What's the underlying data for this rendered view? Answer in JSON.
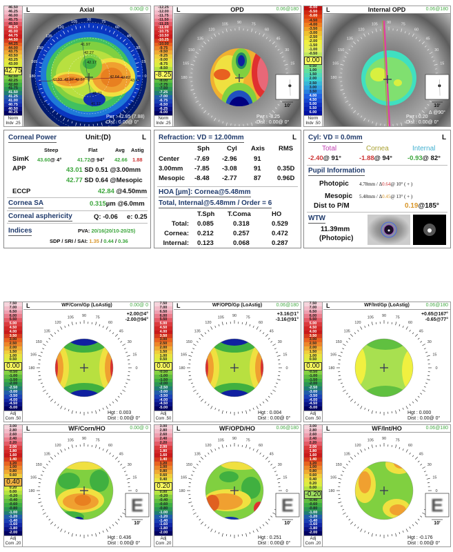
{
  "scales": {
    "axial": [
      "46.50",
      "46.25",
      "46.00",
      "45.75",
      "45.50",
      "45.25",
      "45.00",
      "44.75",
      "44.50",
      "44.25",
      "44.00",
      "43.75",
      "43.50",
      "43.25",
      "43.00",
      "42.75",
      "42.50",
      "42.25",
      "42.00",
      "41.75",
      "41.50",
      "41.25",
      "41.00",
      "40.75",
      "40.50",
      "40.25"
    ],
    "opd": [
      "-12.25",
      "-12.00",
      "-11.75",
      "-11.50",
      "-11.25",
      "-11.00",
      "-10.75",
      "-10.50",
      "-10.25",
      "-10.00",
      "-9.75",
      "-9.50",
      "-9.25",
      "-9.00",
      "-8.75",
      "-8.50",
      "-8.25",
      "-8.00",
      "-7.75",
      "-7.50",
      "-7.25",
      "-7.00",
      "-6.75",
      "-6.50",
      "-6.25",
      "-6.00"
    ],
    "internal": [
      "-6.00",
      "-5.50",
      "-5.00",
      "-4.50",
      "-4.00",
      "-3.50",
      "-3.00",
      "-2.50",
      "-2.00",
      "-1.50",
      "-1.00",
      "-0.50",
      "0.00",
      "0.50",
      "1.00",
      "1.50",
      "2.00",
      "2.50",
      "3.00",
      "3.50",
      "4.00",
      "4.50",
      "5.00",
      "5.50",
      "6.00"
    ],
    "gp": [
      "7.50",
      "7.00",
      "6.50",
      "6.00",
      "5.50",
      "5.00",
      "4.50",
      "4.00",
      "3.50",
      "3.00",
      "2.50",
      "2.00",
      "1.50",
      "1.00",
      "0.50",
      "0.00",
      "-0.50",
      "-1.00",
      "-1.50",
      "-2.00",
      "-2.50",
      "-3.00",
      "-3.50",
      "-4.00",
      "-4.50",
      "-5.00"
    ],
    "ho": [
      "3.00",
      "2.80",
      "2.60",
      "2.40",
      "2.20",
      "2.00",
      "1.80",
      "1.60",
      "1.40",
      "1.20",
      "1.00",
      "0.80",
      "0.60",
      "0.40",
      "0.20",
      "0.00",
      "-0.20",
      "-0.40",
      "-0.60",
      "-0.80",
      "-1.00",
      "-1.20",
      "-1.40",
      "-1.60",
      "-1.80",
      "-2.00"
    ]
  },
  "ramps": {
    "standard": [
      "#f6d4dc",
      "#f0a8b8",
      "#e86878",
      "#d83030",
      "#c81818",
      "#e86020",
      "#f0a030",
      "#f0e040",
      "#d8f040",
      "#80d040",
      "#40b040",
      "#208860",
      "#2050c0",
      "#1020a0",
      "#000060"
    ],
    "internal": [
      "#c01010",
      "#e04010",
      "#f08020",
      "#f0c030",
      "#f0f040",
      "#e0f060",
      "#a0e060",
      "#60e0a0",
      "#40d0d0",
      "#30a0e0",
      "#2060e0",
      "#1030c0",
      "#0010a0"
    ]
  },
  "axis_degrees": [
    "0",
    "15",
    "30",
    "45",
    "60",
    "75",
    "90",
    "105",
    "120",
    "135",
    "150",
    "165",
    "180"
  ],
  "maps": [
    {
      "side": "L",
      "title": "Axial",
      "right": "0.00@  0",
      "scale": "axial",
      "ramp": "standard",
      "highlight": "42.75",
      "foot1": "Norm",
      "foot2": "Indv .25",
      "info1": "Pwr : 42.85 (7.88)",
      "info2": "Dist : 0.00@  0°",
      "readings": [
        "41.97",
        "42.27",
        "42.17",
        "42.93",
        "43.37",
        "42.57",
        "42.64",
        "42.82",
        "43.49",
        "41.71",
        "41.12"
      ]
    },
    {
      "side": "L",
      "title": "OPD",
      "right": "0.06@180",
      "scale": "opd",
      "ramp": "standard",
      "highlight": "-8.25",
      "foot1": "Norm",
      "foot2": "Indv .25",
      "info1": "Pwr : -8.25",
      "info2": "Dist : 0.00@  0°",
      "inset_label": "10'"
    },
    {
      "side": "L",
      "title": "Internal OPD",
      "right": "0.06@180",
      "scale": "internal",
      "ramp": "internal",
      "highlight": "0.00",
      "foot1": "Norm",
      "foot2": "Indv .50",
      "info1": "Pwr : 0.20",
      "info2": "Dist : 0.00@  0°",
      "inset_label": "10'",
      "axis_note": "Δ @90°"
    },
    {
      "side": "L",
      "title": "WF/Corn/Gp (LoAstig)",
      "right": "0.00@  0",
      "scale": "gp",
      "ramp": "standard",
      "highlight": "0.00",
      "foot1": "Adj",
      "foot2": "Com .50",
      "astig1": "+2.00@4°",
      "astig2": "-2.00@94°",
      "info1": "Hgt : 0.003",
      "info2": "Dist : 0.00@  0°"
    },
    {
      "side": "L",
      "title": "WF/OPD/Gp (LoAstig)",
      "right": "0.06@180",
      "scale": "gp",
      "ramp": "standard",
      "highlight": "0.00",
      "foot1": "Adj",
      "foot2": "Com .50",
      "astig1": "+3.16@1°",
      "astig2": "-3.16@91°",
      "info1": "Hgt : 0.004",
      "info2": "Dist : 0.00@  0°"
    },
    {
      "side": "L",
      "title": "WF/Int/Gp (LoAstig)",
      "right": "0.06@180",
      "scale": "gp",
      "ramp": "standard",
      "highlight": "0.00",
      "foot1": "Adj",
      "foot2": "Com .50",
      "astig1": "+0.65@167°",
      "astig2": "-0.65@77°",
      "info1": "Hgt : 0.000",
      "info2": "Dist : 0.00@  0°"
    },
    {
      "side": "L",
      "title": "WF/Corn/HO",
      "right": "0.00@  0",
      "scale": "ho",
      "ramp": "standard",
      "highlight": "0.40",
      "foot1": "Adj",
      "foot2": "Com .20",
      "info1": "Hgt : 0.436",
      "info2": "Dist : 0.00@  0°",
      "inset_label": "10'",
      "inset_letter": "E"
    },
    {
      "side": "L",
      "title": "WF/OPD/HO",
      "right": "0.06@180",
      "scale": "ho",
      "ramp": "standard",
      "highlight": "0.20",
      "foot1": "Adj",
      "foot2": "Com .20",
      "info1": "Hgt : 0.251",
      "info2": "Dist : 0.00@  0°",
      "inset_label": "10'",
      "inset_letter": "E"
    },
    {
      "side": "L",
      "title": "WF/Int/HO",
      "right": "0.06@180",
      "scale": "ho",
      "ramp": "standard",
      "highlight": "-0.20",
      "foot1": "Adj",
      "foot2": "Com .20",
      "info1": "Hgt : -0.176",
      "info2": "Dist : 0.00@  0°",
      "inset_label": "10'",
      "inset_letter": "E"
    }
  ],
  "corneal_power": {
    "title": "Corneal Power",
    "unit": "Unit:(D)",
    "side": "L",
    "col_steep": "Steep",
    "col_flat": "Flat",
    "col_avg": "Avg",
    "col_astig": "Astig",
    "simk_label": "SimK",
    "simk_steep": "43.60",
    "simk_steep_axis": "@  4°",
    "simk_flat": "41.72",
    "simk_flat_axis": "@ 94°",
    "simk_avg": "42.66",
    "simk_astig": "1.88",
    "app_label": "APP",
    "app1_val": "43.01",
    "app1_rest": "SD 0.51 @3.00mm",
    "app2_val": "42.77",
    "app2_rest": "SD 0.64 @Mesopic",
    "eccp_label": "ECCP",
    "eccp_val": "42.84",
    "eccp_rest": "@4.50mm",
    "sa_title": "Cornea SA",
    "sa_val": "0.315",
    "sa_rest": "µm @6.0mm",
    "asph_title": "Corneal asphericity",
    "asph_q": "Q: -0.06",
    "asph_e": "e: 0.25",
    "indices_title": "Indices",
    "pva_label": "PVA: ",
    "pva_val": "20/16(20/10-20/25)",
    "sdp_label": "SDP / SRI / SAI: ",
    "sdp": "1.35",
    "sri": "0.44",
    "sai": "0.36",
    "slash": " / "
  },
  "refraction": {
    "title": "Refraction: VD = 12.00mm",
    "side": "L",
    "cols": [
      "Sph",
      "Cyl",
      "Axis",
      "RMS"
    ],
    "rows": [
      {
        "label": "Center",
        "sph": "-7.69",
        "cyl": "-2.96",
        "axis": "91",
        "rms": ""
      },
      {
        "label": "3.00mm",
        "sph": "-7.85",
        "cyl": "-3.08",
        "axis": "91",
        "rms": "0.35D"
      },
      {
        "label": "Mesopic",
        "sph": "-8.48",
        "cyl": "-2.77",
        "axis": "87",
        "rms": "0.96D"
      }
    ],
    "hoa_title": "HOA [µm]: Cornea@5.48mm",
    "hoa_sub": "Total, Internal@5.48mm / Order = 6",
    "hoa_cols": [
      "T.Sph",
      "T.Coma",
      "HO"
    ],
    "hoa_rows": [
      {
        "label": "Total:",
        "tsph": "0.085",
        "tcoma": "0.318",
        "ho": "0.529"
      },
      {
        "label": "Cornea:",
        "tsph": "0.212",
        "tcoma": "0.257",
        "ho": "0.472"
      },
      {
        "label": "Internal:",
        "tsph": "0.123",
        "tcoma": "0.068",
        "ho": "0.287"
      }
    ]
  },
  "cyl": {
    "title": "Cyl: VD = 0.0mm",
    "side": "L",
    "total_label": "Total",
    "cornea_label": "Cornea",
    "internal_label": "Internal",
    "total_val": "-2.40",
    "total_axis": "@ 91°",
    "cornea_val": "-1.88",
    "cornea_axis": "@ 94°",
    "internal_val": "-0.93",
    "internal_axis": "@ 82°",
    "pupil_title": "Pupil Information",
    "photopic_label": "Photopic",
    "photopic_pre": "4.78mm / Δ",
    "photopic_val": "0.64",
    "photopic_post": "@ 10° ( + )",
    "mesopic_label": "Mesopic",
    "mesopic_pre": "5.48mm / Δ",
    "mesopic_val": "0.45",
    "mesopic_post": "@ 13° ( + )",
    "dist_label": "Dist to P/M",
    "dist_val": "0.19",
    "dist_axis": "@185°",
    "wtw_title": "WTW",
    "wtw_val": "11.39mm",
    "wtw_cond": "(Photopic)"
  }
}
